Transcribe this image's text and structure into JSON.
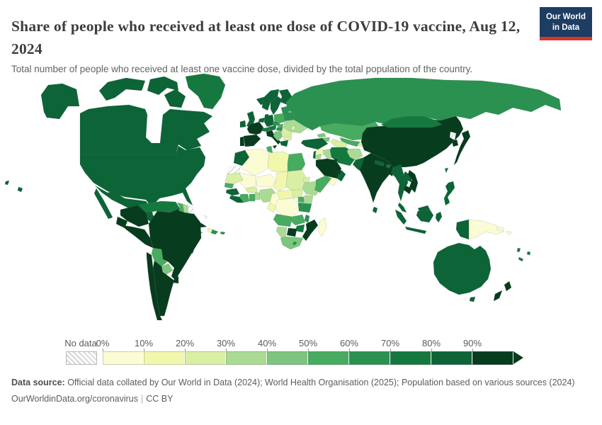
{
  "header": {
    "title": "Share of people who received at least one dose of COVID-19 vaccine, Aug 12, 2024",
    "subtitle": "Total number of people who received at least one vaccine dose, divided by the total population of the country.",
    "logo": {
      "line1": "Our World",
      "line2": "in Data",
      "bg_color": "#1d3d63",
      "bar_color": "#d8332b"
    }
  },
  "chart_data": {
    "type": "choropleth-map",
    "title": "Share of people who received at least one dose of COVID-19 vaccine",
    "date": "Aug 12, 2024",
    "unit": "% of total population",
    "legend": {
      "no_data_label": "No data",
      "ticks": [
        "0%",
        "10%",
        "20%",
        "30%",
        "40%",
        "50%",
        "60%",
        "70%",
        "80%",
        "90%"
      ],
      "buckets": [
        "0-10%",
        "10-20%",
        "20-30%",
        "30-40%",
        "40-50%",
        "50-60%",
        "60-70%",
        "70-80%",
        "80-90%",
        "90%+"
      ],
      "palette": [
        "#fcfcd4",
        "#f2f7ae",
        "#d9efa3",
        "#aada94",
        "#7cc57e",
        "#47ab60",
        "#2a9150",
        "#15793f",
        "#0c6437",
        "#073c1e"
      ],
      "no_data_fill": "hatch"
    },
    "regions": {
      "usa": "80-90%",
      "canada": "80-90%",
      "greenland": "70-80%",
      "mexico": "80-90%",
      "guatemala": "40-50%",
      "honduras": "80-90%",
      "nicaragua": "80-90%",
      "costa_rica": "70-80%",
      "panama": "70-80%",
      "cuba": "90%+",
      "haiti": "10-20%",
      "dominican_republic": "60-70%",
      "jamaica": "50-60%",
      "puerto_rico": "60-70%",
      "bahamas": "0-10%",
      "colombia": "90%+",
      "venezuela": "70-80%",
      "guyana": "50-60%",
      "suriname": "30-40%",
      "french_guiana": "No data",
      "ecuador": "90%+",
      "peru": "90%+",
      "brazil": "90%+",
      "bolivia": "50-60%",
      "paraguay": "40-50%",
      "uruguay": "90%+",
      "argentina": "90%+",
      "chile": "90%+",
      "iceland": "80-90%",
      "ireland": "80-90%",
      "united_kingdom": "80-90%",
      "norway": "80-90%",
      "sweden": "80-90%",
      "finland": "80-90%",
      "denmark": "80-90%",
      "portugal": "90%+",
      "spain": "90%+",
      "france": "90%+",
      "benelux": "80-90%",
      "germany": "80-90%",
      "switzerland": "70-80%",
      "austria": "70-80%",
      "czechia": "60-70%",
      "poland": "50-60%",
      "italy": "90%+",
      "slovakia": "50-60%",
      "hungary": "60-70%",
      "balkans": "40-50%",
      "romania": "20-30%",
      "bulgaria": "20-30%",
      "greece": "80-90%",
      "baltics": "60-70%",
      "belarus": "60-70%",
      "ukraine": "30-40%",
      "moldova": "20-30%",
      "russia": "60-70%",
      "kazakhstan": "50-60%",
      "uzbekistan": "50-60%",
      "turkmenistan": "20-30%",
      "kyrgyzstan": "50-60%",
      "tajikistan": "20-30%",
      "georgia": "40-50%",
      "armenia_azerbaijan": "40-50%",
      "turkey": "80-90%",
      "syria": "10-20%",
      "israel_lebanon": "80-90%",
      "jordan": "30-40%",
      "iraq": "30-40%",
      "iran": "70-80%",
      "saudi_arabia": "90%+",
      "kuwait": "90%+",
      "yemen": "0-10%",
      "oman": "80-90%",
      "uae": "90%+",
      "afghanistan": "30-40%",
      "pakistan": "80-90%",
      "india": "90%+",
      "nepal": "80-90%",
      "bhutan": "70-80%",
      "bangladesh": "90%+",
      "sri_lanka": "80-90%",
      "myanmar": "80-90%",
      "thailand": "80-90%",
      "laos": "80-90%",
      "vietnam": "90%+",
      "cambodia": "90%+",
      "malaysia": "80-90%",
      "china": "90%+",
      "mongolia": "70-80%",
      "north_korea": "No data",
      "south_korea": "90%+",
      "japan": "90%+",
      "taiwan": "70-80%",
      "philippines": "80-90%",
      "indonesia": "80-90%",
      "papua_new_guinea": "0-10%",
      "solomon_islands": "0-10%",
      "vanuatu": "70-80%",
      "fiji": "70-80%",
      "new_caledonia": "70-80%",
      "australia": "80-90%",
      "new_zealand": "90%+",
      "morocco": "80-90%",
      "western_sahara": "No data",
      "algeria": "0-10%",
      "tunisia": "50-60%",
      "libya": "10-20%",
      "egypt": "50-60%",
      "mauritania": "20-30%",
      "mali": "0-10%",
      "niger": "0-10%",
      "chad": "10-20%",
      "sudan": "20-30%",
      "eritrea": "20-30%",
      "senegal": "50-60%",
      "guinea": "80-90%",
      "sierra_leone_liberia": "80-90%",
      "ivory_coast": "50-60%",
      "ghana": "50-60%",
      "togo_benin": "30-40%",
      "burkina_faso": "20-30%",
      "nigeria": "30-40%",
      "cameroon": "0-10%",
      "central_african_republic": "10-20%",
      "south_sudan": "20-30%",
      "ethiopia": "30-40%",
      "somalia": "50-60%",
      "kenya": "30-40%",
      "uganda": "50-60%",
      "tanzania": "60-70%",
      "rwanda_burundi": "80-90%",
      "dr_congo": "0-10%",
      "congo_gabon": "10-20%",
      "angola": "50-60%",
      "zambia": "50-60%",
      "malawi": "60-70%",
      "mozambique": "90%+",
      "zimbabwe": "70-80%",
      "botswana": "90%+",
      "namibia": "30-40%",
      "south_africa": "40-50%",
      "lesotho": "60-70%",
      "madagascar": "0-10%"
    }
  },
  "footer": {
    "source_label": "Data source:",
    "source_text": " Official data collated by Our World in Data (2024); World Health Organisation (2025); Population based on various sources (2024)",
    "link": "OurWorldinData.org/coronavirus",
    "separator": "|",
    "license": "CC BY"
  }
}
